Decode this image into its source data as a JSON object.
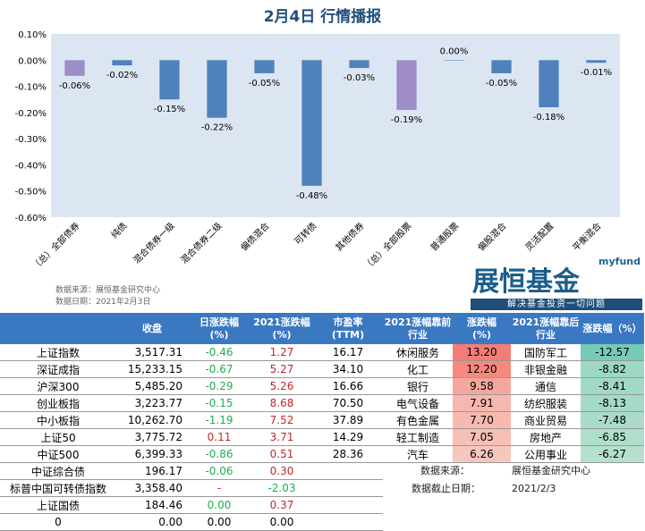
{
  "title": "2月4日  行情播报",
  "chart_data": {
    "type": "bar",
    "categories": [
      "（总）全部债券",
      "纯债",
      "混合债券一级",
      "混合债券二级",
      "偏债混合",
      "可转债",
      "其他债券",
      "（总）全部股票",
      "普通股票",
      "偏股混合",
      "灵活配置",
      "平衡混合"
    ],
    "values": [
      -0.06,
      -0.02,
      -0.15,
      -0.22,
      -0.05,
      -0.48,
      -0.03,
      -0.19,
      0.0,
      -0.05,
      -0.18,
      -0.01
    ],
    "labels": [
      "-0.06%",
      "-0.02%",
      "-0.15%",
      "-0.22%",
      "-0.05%",
      "-0.48%",
      "-0.03%",
      "-0.19%",
      "0.00%",
      "-0.05%",
      "-0.18%",
      "-0.01%"
    ],
    "highlight": [
      0,
      7
    ],
    "colors": {
      "bar": "#4f81bd",
      "highlight": "#9e8dc8",
      "plot_bg": "#dce6f2"
    },
    "ylim": [
      -0.6,
      0.1
    ],
    "yticks": [
      "0.10%",
      "0.00%",
      "-0.10%",
      "-0.20%",
      "-0.30%",
      "-0.40%",
      "-0.50%",
      "-0.60%"
    ]
  },
  "source": {
    "line1": "数据来源：展恒基金研究中心",
    "line2": "数据日期：2021年2月3日"
  },
  "logo": {
    "en": "myfund",
    "cn": "展恒基金",
    "tagline": "解决基金投资一切问题"
  },
  "left_table": {
    "headers": [
      "",
      "收盘",
      "日涨跌幅\n(%)",
      "2021涨跌幅\n(%)",
      "市盈率\n(TTM)"
    ],
    "rows": [
      [
        "上证指数",
        "3,517.31",
        "-0.46",
        "1.27",
        "16.17"
      ],
      [
        "深证成指",
        "15,233.15",
        "-0.67",
        "5.27",
        "34.10"
      ],
      [
        "沪深300",
        "5,485.20",
        "-0.29",
        "5.26",
        "16.66"
      ],
      [
        "创业板指",
        "3,223.77",
        "-0.15",
        "8.68",
        "70.50"
      ],
      [
        "中小板指",
        "10,262.70",
        "-1.19",
        "7.52",
        "37.89"
      ],
      [
        "上证50",
        "3,775.72",
        "0.11",
        "3.71",
        "14.29"
      ],
      [
        "中证500",
        "6,399.33",
        "-0.86",
        "0.51",
        "28.36"
      ],
      [
        "中证综合债",
        "196.17",
        "-0.06",
        "0.30",
        ""
      ],
      [
        "标普中国可转债指数",
        "3,358.40",
        "-",
        "-2.03",
        ""
      ],
      [
        "上证国债",
        "184.46",
        "0.00",
        "0.37",
        ""
      ],
      [
        "0",
        "0.00",
        "0.00",
        "0.00",
        ""
      ]
    ]
  },
  "right_table": {
    "headers": [
      "2021涨幅靠前\n行业",
      "涨跌幅\n(%)",
      "2021涨幅靠后\n行业",
      "涨跌幅（%）"
    ],
    "rows": [
      [
        "休闲服务",
        "13.20",
        "国防军工",
        "-12.57"
      ],
      [
        "化工",
        "12.20",
        "非银金融",
        "-8.82"
      ],
      [
        "银行",
        "9.58",
        "通信",
        "-8.41"
      ],
      [
        "电气设备",
        "7.91",
        "纺织服装",
        "-8.13"
      ],
      [
        "有色金属",
        "7.70",
        "商业贸易",
        "-7.48"
      ],
      [
        "轻工制造",
        "7.05",
        "房地产",
        "-6.85"
      ],
      [
        "汽车",
        "6.26",
        "公用事业",
        "-6.27"
      ]
    ]
  },
  "notes": {
    "src_label": "数据来源：",
    "src_value": "展恒基金研究中心",
    "date_label": "数据截止日期：",
    "date_value": "2021/2/3"
  }
}
